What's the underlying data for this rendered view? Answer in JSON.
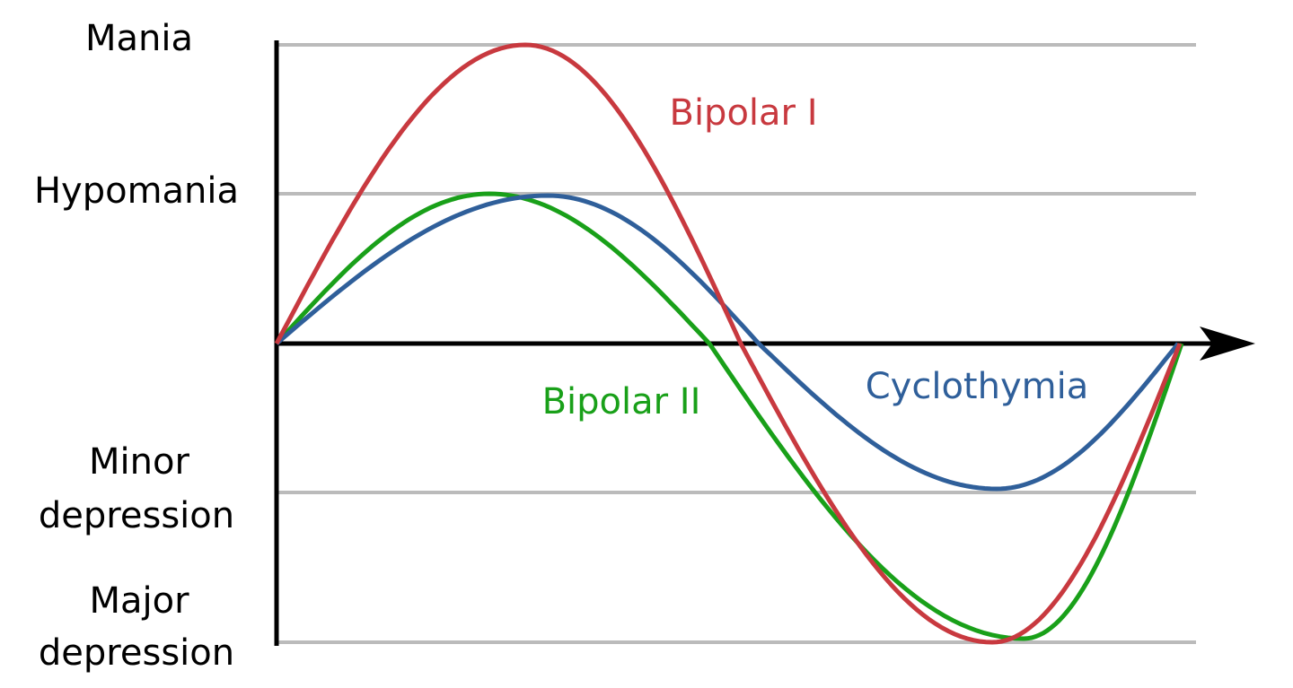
{
  "levels": {
    "mania": "Mania",
    "hypomania": "Hypomania",
    "minor_depression": [
      "Minor",
      "depression"
    ],
    "major_depression": [
      "Major",
      "depression"
    ]
  },
  "curves": {
    "bipolar_1": "Bipolar I",
    "bipolar_2": "Bipolar II",
    "cyclothymia": "Cyclothymia"
  }
}
